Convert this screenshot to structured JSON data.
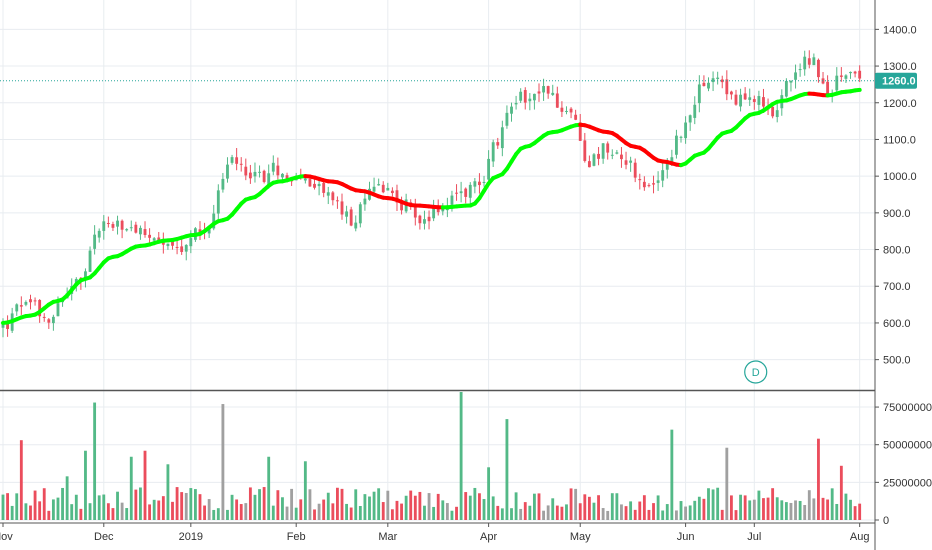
{
  "chart_data": {
    "type": "candlestick",
    "interval_marker": "D",
    "last_price_label": "1260.0",
    "colors": {
      "up": "#53b987",
      "down": "#eb4d5c",
      "ma_up": "#00ff00",
      "ma_down": "#ff0000",
      "volume_up": "#53b987",
      "volume_down": "#eb4d5c",
      "volume_neutral": "#a0a0a0",
      "badge": "#26a69a",
      "grid": "#e8ecf0"
    },
    "x_axis": {
      "ticks": [
        {
          "label": "Nov",
          "index": 0
        },
        {
          "label": "Dec",
          "index": 22
        },
        {
          "label": "2019",
          "index": 41
        },
        {
          "label": "Feb",
          "index": 64
        },
        {
          "label": "Mar",
          "index": 84
        },
        {
          "label": "Apr",
          "index": 106
        },
        {
          "label": "May",
          "index": 126
        },
        {
          "label": "Jun",
          "index": 149
        },
        {
          "label": "Jul",
          "index": 164
        },
        {
          "label": "Aug",
          "index": 187
        }
      ]
    },
    "price_axis": {
      "ylim": [
        420,
        1480
      ],
      "tick_labels": [
        "1400.0",
        "1300.0",
        "1200.0",
        "1100.0",
        "1000.0",
        "900.0",
        "800.0",
        "700.0",
        "600.0",
        "500.0"
      ]
    },
    "volume_axis": {
      "ylim": [
        0,
        85000000
      ],
      "tick_labels": [
        "75000000",
        "50000000",
        "25000000",
        "0"
      ]
    },
    "close_anchors": [
      [
        0,
        590
      ],
      [
        5,
        660
      ],
      [
        10,
        620
      ],
      [
        16,
        700
      ],
      [
        22,
        870
      ],
      [
        28,
        850
      ],
      [
        33,
        820
      ],
      [
        38,
        790
      ],
      [
        44,
        860
      ],
      [
        50,
        1040
      ],
      [
        56,
        1000
      ],
      [
        60,
        1020
      ],
      [
        64,
        990
      ],
      [
        70,
        960
      ],
      [
        76,
        880
      ],
      [
        82,
        980
      ],
      [
        88,
        920
      ],
      [
        92,
        880
      ],
      [
        96,
        920
      ],
      [
        100,
        960
      ],
      [
        104,
        980
      ],
      [
        108,
        1100
      ],
      [
        112,
        1210
      ],
      [
        118,
        1230
      ],
      [
        124,
        1170
      ],
      [
        128,
        1040
      ],
      [
        132,
        1080
      ],
      [
        136,
        1050
      ],
      [
        140,
        960
      ],
      [
        144,
        1010
      ],
      [
        148,
        1120
      ],
      [
        152,
        1230
      ],
      [
        156,
        1270
      ],
      [
        160,
        1200
      ],
      [
        164,
        1220
      ],
      [
        168,
        1180
      ],
      [
        172,
        1260
      ],
      [
        176,
        1320
      ],
      [
        180,
        1230
      ],
      [
        184,
        1280
      ],
      [
        187,
        1260
      ]
    ],
    "ma_anchors": [
      [
        0,
        600
      ],
      [
        6,
        620
      ],
      [
        12,
        660
      ],
      [
        18,
        720
      ],
      [
        24,
        780
      ],
      [
        30,
        810
      ],
      [
        36,
        825
      ],
      [
        42,
        840
      ],
      [
        48,
        880
      ],
      [
        54,
        940
      ],
      [
        60,
        985
      ],
      [
        66,
        1000
      ],
      [
        72,
        985
      ],
      [
        78,
        960
      ],
      [
        84,
        940
      ],
      [
        90,
        920
      ],
      [
        96,
        915
      ],
      [
        102,
        920
      ],
      [
        108,
        1000
      ],
      [
        114,
        1080
      ],
      [
        120,
        1120
      ],
      [
        126,
        1140
      ],
      [
        132,
        1120
      ],
      [
        138,
        1080
      ],
      [
        144,
        1040
      ],
      [
        148,
        1030
      ],
      [
        152,
        1060
      ],
      [
        158,
        1120
      ],
      [
        164,
        1170
      ],
      [
        170,
        1205
      ],
      [
        176,
        1225
      ],
      [
        180,
        1220
      ],
      [
        184,
        1230
      ],
      [
        187,
        1235
      ]
    ],
    "volume_spikes": [
      [
        4,
        53000000
      ],
      [
        14,
        29000000
      ],
      [
        18,
        46000000
      ],
      [
        20,
        78000000
      ],
      [
        28,
        42000000
      ],
      [
        31,
        46000000
      ],
      [
        36,
        37000000
      ],
      [
        48,
        77000000
      ],
      [
        58,
        42000000
      ],
      [
        66,
        39000000
      ],
      [
        100,
        85000000
      ],
      [
        106,
        35000000
      ],
      [
        110,
        67000000
      ],
      [
        146,
        60000000
      ],
      [
        158,
        48000000
      ],
      [
        178,
        54000000
      ],
      [
        183,
        36000000
      ]
    ]
  }
}
